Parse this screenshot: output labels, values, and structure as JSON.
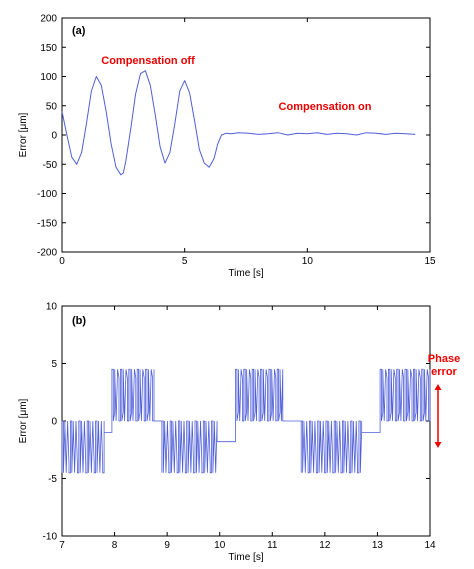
{
  "chart_data": [
    {
      "type": "line",
      "panel_label": "(a)",
      "xlabel": "Time [s]",
      "ylabel": "Error [μm]",
      "xlim": [
        0,
        15
      ],
      "ylim": [
        -200,
        200
      ],
      "xticks": [
        0,
        5,
        10,
        15
      ],
      "yticks": [
        -200,
        -150,
        -100,
        -50,
        0,
        50,
        100,
        150,
        200
      ],
      "grid": false,
      "line_color": "#4f5fd8",
      "annotations": [
        {
          "text": "Compensation off",
          "x": 3.4,
          "y": 122,
          "color": "#ee0000"
        },
        {
          "text": "Compensation on",
          "x": 10.9,
          "y": 42,
          "color": "#ee0000"
        }
      ],
      "series": [
        {
          "values_x": [
            0,
            0.2,
            0.4,
            0.6,
            0.8,
            1.0,
            1.2,
            1.4,
            1.6,
            1.8,
            2.0,
            2.2,
            2.4,
            2.5,
            2.6,
            2.8,
            3.0,
            3.2,
            3.4,
            3.6,
            3.8,
            4.0,
            4.2,
            4.4,
            4.6,
            4.8,
            5.0,
            5.2,
            5.4,
            5.6,
            5.8,
            6.0,
            6.2,
            6.35,
            6.5,
            6.7,
            6.9,
            7.2,
            7.6,
            8.0,
            8.4,
            8.8,
            9.2,
            9.6,
            10.0,
            10.4,
            10.8,
            11.2,
            11.6,
            12.0,
            12.4,
            12.8,
            13.2,
            13.6,
            14.0,
            14.4
          ],
          "values_y": [
            40,
            0,
            -38,
            -50,
            -30,
            20,
            75,
            100,
            85,
            40,
            -15,
            -55,
            -68,
            -65,
            -45,
            10,
            70,
            105,
            110,
            85,
            35,
            -20,
            -48,
            -30,
            20,
            75,
            93,
            72,
            25,
            -25,
            -48,
            -55,
            -40,
            -15,
            0,
            3,
            2,
            4,
            3,
            1,
            2,
            4,
            0,
            3,
            2,
            4,
            1,
            3,
            2,
            0,
            4,
            3,
            1,
            3,
            2,
            1
          ]
        }
      ]
    },
    {
      "type": "line",
      "panel_label": "(b)",
      "xlabel": "Time [s]",
      "ylabel": "Error [μm]",
      "xlim": [
        7,
        14
      ],
      "ylim": [
        -10,
        10
      ],
      "xticks": [
        7,
        8,
        9,
        10,
        11,
        12,
        13,
        14
      ],
      "yticks": [
        -10,
        -5,
        0,
        5,
        10
      ],
      "grid": false,
      "line_color": "#4f5fd8",
      "annotations": [
        {
          "text": "Phase error",
          "x": 13.8,
          "y": 5.5,
          "color": "#ee0000"
        }
      ],
      "series": [
        {
          "segments": [
            {
              "t_start": 7.0,
              "t_end": 7.8,
              "low": -4.5,
              "high": 0
            },
            {
              "t_start": 7.8,
              "t_end": 7.95,
              "low": -1,
              "high": -1
            },
            {
              "t_start": 7.95,
              "t_end": 8.75,
              "low": 0,
              "high": 4.5
            },
            {
              "t_start": 8.75,
              "t_end": 8.9,
              "low": 0,
              "high": 0
            },
            {
              "t_start": 8.9,
              "t_end": 9.95,
              "low": -4.5,
              "high": 0
            },
            {
              "t_start": 9.95,
              "t_end": 10.3,
              "low": -1.8,
              "high": -1.8
            },
            {
              "t_start": 10.3,
              "t_end": 11.2,
              "low": 0,
              "high": 4.5
            },
            {
              "t_start": 11.2,
              "t_end": 11.55,
              "low": 0,
              "high": 0
            },
            {
              "t_start": 11.55,
              "t_end": 12.7,
              "low": -4.5,
              "high": 0
            },
            {
              "t_start": 12.7,
              "t_end": 13.05,
              "low": -1,
              "high": -1
            },
            {
              "t_start": 13.05,
              "t_end": 14.0,
              "low": 0,
              "high": 4.5
            }
          ]
        }
      ]
    }
  ]
}
